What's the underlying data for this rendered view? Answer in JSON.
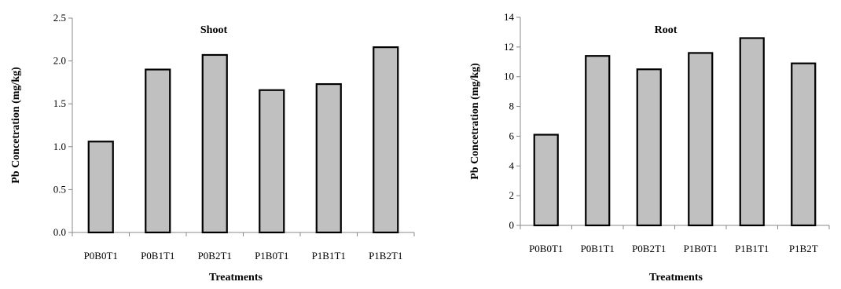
{
  "chart_data": [
    {
      "type": "bar",
      "title": "Shoot",
      "xlabel": "Treatments",
      "ylabel": "Pb  Concetration (mg/kg)",
      "categories": [
        "P0B0T1",
        "P0B1T1",
        "P0B2T1",
        "P1B0T1",
        "P1B1T1",
        "P1B2T1"
      ],
      "values": [
        1.06,
        1.9,
        2.07,
        1.66,
        1.73,
        2.16
      ],
      "ylim": [
        0,
        2.5
      ],
      "yticks": [
        "0.0",
        "0.5",
        "1.0",
        "1.5",
        "2.0",
        "2.5"
      ],
      "bar_color": "#c0c0c0",
      "grid": false,
      "legend": "none"
    },
    {
      "type": "bar",
      "title": "Root",
      "xlabel": "Treatments",
      "ylabel": "Pb  Concetration (mg/kg)",
      "categories": [
        "P0B0T1",
        "P0B1T1",
        "P0B2T1",
        "P1B0T1",
        "P1B1T1",
        "P1B2T"
      ],
      "values": [
        6.1,
        11.4,
        10.5,
        11.6,
        12.6,
        10.9
      ],
      "ylim": [
        0,
        14
      ],
      "yticks": [
        "0",
        "2",
        "4",
        "6",
        "8",
        "10",
        "12",
        "14"
      ],
      "bar_color": "#c0c0c0",
      "grid": false,
      "legend": "none"
    }
  ]
}
